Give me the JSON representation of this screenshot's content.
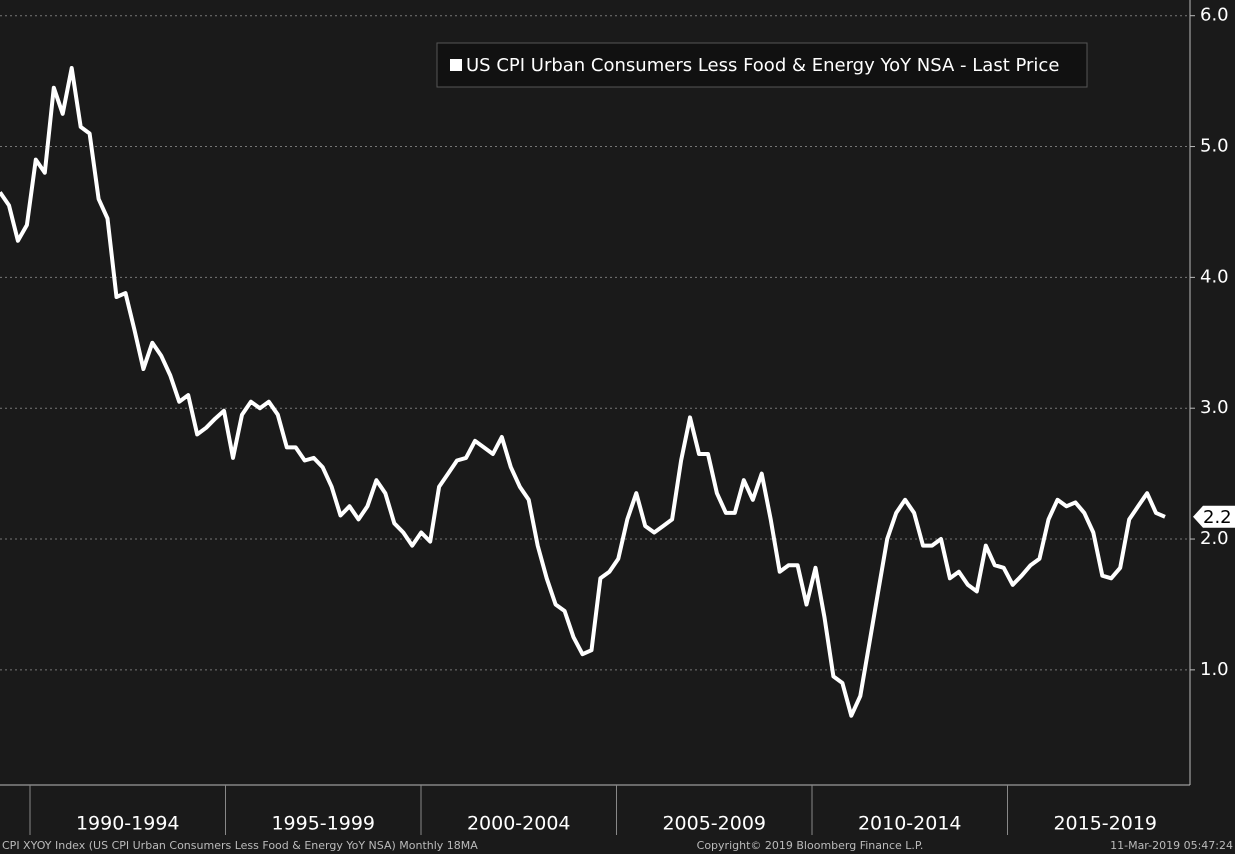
{
  "chart_data": {
    "type": "line",
    "legend": "top",
    "series": [
      {
        "name": "US CPI Urban Consumers Less Food & Energy YoY NSA - Last Price",
        "color": "#ffffff",
        "values": [
          4.65,
          4.55,
          4.28,
          4.4,
          4.9,
          4.8,
          5.45,
          5.25,
          5.6,
          5.15,
          5.1,
          4.6,
          4.45,
          3.85,
          3.88,
          3.6,
          3.3,
          3.5,
          3.4,
          3.25,
          3.05,
          3.1,
          2.8,
          2.85,
          2.92,
          2.98,
          2.62,
          2.95,
          3.05,
          3.0,
          3.05,
          2.95,
          2.7,
          2.7,
          2.6,
          2.62,
          2.55,
          2.4,
          2.18,
          2.25,
          2.15,
          2.25,
          2.45,
          2.35,
          2.12,
          2.05,
          1.95,
          2.05,
          1.98,
          2.4,
          2.5,
          2.6,
          2.62,
          2.75,
          2.7,
          2.65,
          2.78,
          2.55,
          2.4,
          2.3,
          1.95,
          1.7,
          1.5,
          1.45,
          1.25,
          1.12,
          1.15,
          1.7,
          1.75,
          1.85,
          2.15,
          2.35,
          2.1,
          2.05,
          2.1,
          2.15,
          2.6,
          2.93,
          2.65,
          2.65,
          2.35,
          2.2,
          2.2,
          2.45,
          2.3,
          2.5,
          2.15,
          1.75,
          1.8,
          1.8,
          1.5,
          1.78,
          1.4,
          0.95,
          0.9,
          0.65,
          0.8,
          1.2,
          1.6,
          2.0,
          2.2,
          2.3,
          2.2,
          1.95,
          1.95,
          2.0,
          1.7,
          1.75,
          1.65,
          1.6,
          1.95,
          1.8,
          1.78,
          1.65,
          1.72,
          1.8,
          1.85,
          2.15,
          2.3,
          2.25,
          2.28,
          2.2,
          2.05,
          1.72,
          1.7,
          1.78,
          2.15,
          2.25,
          2.35,
          2.2,
          2.17
        ]
      }
    ],
    "last_price_label": "2.2",
    "periods": [
      "1990-1994",
      "1995-1999",
      "2000-2004",
      "2005-2009",
      "2010-2014",
      "2015-2019"
    ],
    "ylim": [
      0.12,
      6.12
    ],
    "yticks": [
      {
        "value": 1,
        "label": "1.0"
      },
      {
        "value": 2,
        "label": "2.0"
      },
      {
        "value": 3,
        "label": "3.0"
      },
      {
        "value": 4,
        "label": "4.0"
      },
      {
        "value": 5,
        "label": "5.0"
      },
      {
        "value": 6,
        "label": "6.0"
      }
    ],
    "grid": true,
    "footer": {
      "source": "CPI XYOY Index (US CPI Urban Consumers Less Food & Energy YoY NSA)  Monthly 18MA",
      "copyright": "Copyright© 2019 Bloomberg Finance L.P.",
      "timestamp": "11-Mar-2019 05:47:24"
    }
  }
}
